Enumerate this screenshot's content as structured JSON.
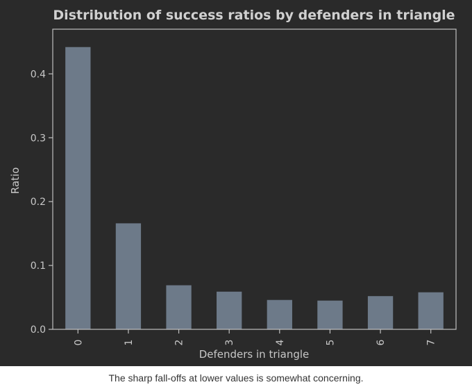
{
  "chart_data": {
    "type": "bar",
    "title": "Distribution of success ratios by defenders in triangle",
    "xlabel": "Defenders in triangle",
    "ylabel": "Ratio",
    "categories": [
      "0",
      "1",
      "2",
      "3",
      "4",
      "5",
      "6",
      "7"
    ],
    "values": [
      0.442,
      0.166,
      0.069,
      0.059,
      0.046,
      0.045,
      0.052,
      0.058
    ],
    "ylim": [
      0,
      0.47
    ],
    "yticks": [
      0.0,
      0.1,
      0.2,
      0.3,
      0.4
    ],
    "ytick_labels": [
      "0.0",
      "0.1",
      "0.2",
      "0.3",
      "0.4"
    ],
    "grid": false,
    "legend": "none",
    "colors": {
      "bar": "#6d7a89",
      "background": "#2a2a2a",
      "text": "#c8c8c8",
      "title": "#d0d0d0",
      "axes": "#c0c0c0"
    }
  },
  "caption": "The sharp fall-offs at lower values is somewhat concerning."
}
